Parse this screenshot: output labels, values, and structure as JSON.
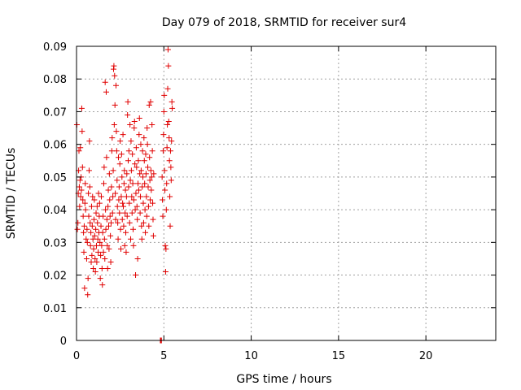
{
  "chart_data": {
    "type": "scatter",
    "title": "Day 079 of 2018, SRMTID for receiver sur4",
    "xlabel": "GPS time / hours",
    "ylabel": "SRMTID / TECUs",
    "xlim": [
      0,
      24
    ],
    "ylim": [
      0,
      0.09
    ],
    "xticks": [
      0,
      5,
      10,
      15,
      20
    ],
    "xtick_labels": [
      "0",
      "5",
      "10",
      "15",
      "20"
    ],
    "yticks": [
      0,
      0.01,
      0.02,
      0.03,
      0.04,
      0.05,
      0.06,
      0.07,
      0.08,
      0.09
    ],
    "ytick_labels": [
      "0",
      "0.01",
      "0.02",
      "0.03",
      "0.04",
      "0.05",
      "0.06",
      "0.07",
      "0.08",
      "0.09"
    ],
    "grid": true,
    "marker": "+",
    "color": "#e00000",
    "series": [
      {
        "name": "SRMTID",
        "points": [
          [
            0.02,
            0.066
          ],
          [
            0.05,
            0.034
          ],
          [
            0.08,
            0.036
          ],
          [
            0.1,
            0.045
          ],
          [
            0.12,
            0.052
          ],
          [
            0.14,
            0.058
          ],
          [
            0.16,
            0.047
          ],
          [
            0.18,
            0.041
          ],
          [
            0.2,
            0.049
          ],
          [
            0.22,
            0.059
          ],
          [
            0.24,
            0.044
          ],
          [
            0.26,
            0.05
          ],
          [
            0.28,
            0.046
          ],
          [
            0.3,
            0.071
          ],
          [
            0.32,
            0.064
          ],
          [
            0.34,
            0.053
          ],
          [
            0.36,
            0.043
          ],
          [
            0.38,
            0.038
          ],
          [
            0.4,
            0.033
          ],
          [
            0.42,
            0.027
          ],
          [
            0.44,
            0.035
          ],
          [
            0.46,
            0.016
          ],
          [
            0.48,
            0.042
          ],
          [
            0.5,
            0.048
          ],
          [
            0.52,
            0.04
          ],
          [
            0.55,
            0.031
          ],
          [
            0.58,
            0.025
          ],
          [
            0.6,
            0.034
          ],
          [
            0.62,
            0.03
          ],
          [
            0.64,
            0.014
          ],
          [
            0.66,
            0.019
          ],
          [
            0.68,
            0.045
          ],
          [
            0.7,
            0.038
          ],
          [
            0.72,
            0.052
          ],
          [
            0.74,
            0.061
          ],
          [
            0.76,
            0.047
          ],
          [
            0.78,
            0.036
          ],
          [
            0.8,
            0.029
          ],
          [
            0.82,
            0.033
          ],
          [
            0.84,
            0.024
          ],
          [
            0.86,
            0.041
          ],
          [
            0.88,
            0.026
          ],
          [
            0.9,
            0.035
          ],
          [
            0.92,
            0.044
          ],
          [
            0.94,
            0.031
          ],
          [
            0.96,
            0.022
          ],
          [
            0.98,
            0.028
          ],
          [
            1.0,
            0.037
          ],
          [
            1.02,
            0.043
          ],
          [
            1.04,
            0.032
          ],
          [
            1.06,
            0.025
          ],
          [
            1.08,
            0.021
          ],
          [
            1.1,
            0.034
          ],
          [
            1.12,
            0.039
          ],
          [
            1.14,
            0.029
          ],
          [
            1.16,
            0.024
          ],
          [
            1.18,
            0.041
          ],
          [
            1.2,
            0.036
          ],
          [
            1.22,
            0.031
          ],
          [
            1.24,
            0.027
          ],
          [
            1.26,
            0.045
          ],
          [
            1.28,
            0.033
          ],
          [
            1.3,
            0.038
          ],
          [
            1.32,
            0.042
          ],
          [
            1.34,
            0.03
          ],
          [
            1.36,
            0.019
          ],
          [
            1.38,
            0.026
          ],
          [
            1.4,
            0.035
          ],
          [
            1.42,
            0.044
          ],
          [
            1.44,
            0.029
          ],
          [
            1.46,
            0.022
          ],
          [
            1.48,
            0.017
          ],
          [
            1.5,
            0.033
          ],
          [
            1.52,
            0.038
          ],
          [
            1.54,
            0.027
          ],
          [
            1.56,
            0.048
          ],
          [
            1.58,
            0.053
          ],
          [
            1.6,
            0.031
          ],
          [
            1.62,
            0.025
          ],
          [
            1.64,
            0.079
          ],
          [
            1.66,
            0.04
          ],
          [
            1.68,
            0.034
          ],
          [
            1.7,
            0.076
          ],
          [
            1.72,
            0.056
          ],
          [
            1.74,
            0.037
          ],
          [
            1.76,
            0.029
          ],
          [
            1.78,
            0.022
          ],
          [
            1.8,
            0.041
          ],
          [
            1.82,
            0.046
          ],
          [
            1.84,
            0.035
          ],
          [
            1.86,
            0.028
          ],
          [
            1.88,
            0.051
          ],
          [
            1.9,
            0.043
          ],
          [
            1.92,
            0.038
          ],
          [
            1.94,
            0.032
          ],
          [
            1.96,
            0.024
          ],
          [
            1.98,
            0.036
          ],
          [
            2.0,
            0.047
          ],
          [
            2.02,
            0.058
          ],
          [
            2.04,
            0.062
          ],
          [
            2.06,
            0.039
          ],
          [
            2.08,
            0.044
          ],
          [
            2.1,
            0.052
          ],
          [
            2.12,
            0.083
          ],
          [
            2.14,
            0.084
          ],
          [
            2.16,
            0.066
          ],
          [
            2.18,
            0.081
          ],
          [
            2.2,
            0.072
          ],
          [
            2.22,
            0.045
          ],
          [
            2.24,
            0.037
          ],
          [
            2.26,
            0.078
          ],
          [
            2.28,
            0.064
          ],
          [
            2.3,
            0.058
          ],
          [
            2.32,
            0.049
          ],
          [
            2.34,
            0.041
          ],
          [
            2.36,
            0.036
          ],
          [
            2.38,
            0.031
          ],
          [
            2.4,
            0.056
          ],
          [
            2.42,
            0.043
          ],
          [
            2.44,
            0.047
          ],
          [
            2.46,
            0.039
          ],
          [
            2.48,
            0.054
          ],
          [
            2.5,
            0.061
          ],
          [
            2.52,
            0.034
          ],
          [
            2.54,
            0.028
          ],
          [
            2.56,
            0.044
          ],
          [
            2.58,
            0.057
          ],
          [
            2.6,
            0.05
          ],
          [
            2.62,
            0.037
          ],
          [
            2.64,
            0.042
          ],
          [
            2.66,
            0.063
          ],
          [
            2.68,
            0.041
          ],
          [
            2.7,
            0.035
          ],
          [
            2.72,
            0.048
          ],
          [
            2.74,
            0.052
          ],
          [
            2.76,
            0.029
          ],
          [
            2.78,
            0.039
          ],
          [
            2.8,
            0.046
          ],
          [
            2.82,
            0.033
          ],
          [
            2.84,
            0.027
          ],
          [
            2.86,
            0.044
          ],
          [
            2.88,
            0.051
          ],
          [
            2.9,
            0.038
          ],
          [
            2.92,
            0.069
          ],
          [
            2.94,
            0.073
          ],
          [
            2.96,
            0.055
          ],
          [
            2.98,
            0.047
          ],
          [
            3.0,
            0.058
          ],
          [
            3.02,
            0.042
          ],
          [
            3.04,
            0.036
          ],
          [
            3.06,
            0.066
          ],
          [
            3.08,
            0.049
          ],
          [
            3.1,
            0.031
          ],
          [
            3.12,
            0.061
          ],
          [
            3.14,
            0.052
          ],
          [
            3.16,
            0.044
          ],
          [
            3.18,
            0.039
          ],
          [
            3.2,
            0.057
          ],
          [
            3.22,
            0.048
          ],
          [
            3.24,
            0.034
          ],
          [
            3.26,
            0.029
          ],
          [
            3.28,
            0.043
          ],
          [
            3.3,
            0.065
          ],
          [
            3.32,
            0.067
          ],
          [
            3.34,
            0.054
          ],
          [
            3.36,
            0.04
          ],
          [
            3.38,
            0.02
          ],
          [
            3.4,
            0.045
          ],
          [
            3.42,
            0.059
          ],
          [
            3.44,
            0.053
          ],
          [
            3.46,
            0.041
          ],
          [
            3.48,
            0.037
          ],
          [
            3.5,
            0.025
          ],
          [
            3.52,
            0.048
          ],
          [
            3.54,
            0.055
          ],
          [
            3.56,
            0.046
          ],
          [
            3.58,
            0.063
          ],
          [
            3.6,
            0.068
          ],
          [
            3.62,
            0.051
          ],
          [
            3.64,
            0.039
          ],
          [
            3.66,
            0.044
          ],
          [
            3.68,
            0.06
          ],
          [
            3.7,
            0.052
          ],
          [
            3.72,
            0.035
          ],
          [
            3.74,
            0.031
          ],
          [
            3.76,
            0.047
          ],
          [
            3.78,
            0.058
          ],
          [
            3.8,
            0.05
          ],
          [
            3.82,
            0.042
          ],
          [
            3.84,
            0.036
          ],
          [
            3.86,
            0.062
          ],
          [
            3.88,
            0.055
          ],
          [
            3.9,
            0.048
          ],
          [
            3.92,
            0.04
          ],
          [
            3.94,
            0.033
          ],
          [
            3.96,
            0.057
          ],
          [
            3.98,
            0.051
          ],
          [
            4.0,
            0.044
          ],
          [
            4.02,
            0.038
          ],
          [
            4.04,
            0.065
          ],
          [
            4.06,
            0.06
          ],
          [
            4.08,
            0.053
          ],
          [
            4.1,
            0.047
          ],
          [
            4.12,
            0.041
          ],
          [
            4.14,
            0.035
          ],
          [
            4.16,
            0.072
          ],
          [
            4.18,
            0.056
          ],
          [
            4.2,
            0.049
          ],
          [
            4.22,
            0.043
          ],
          [
            4.24,
            0.073
          ],
          [
            4.26,
            0.052
          ],
          [
            4.28,
            0.046
          ],
          [
            4.3,
            0.05
          ],
          [
            4.32,
            0.066
          ],
          [
            4.34,
            0.058
          ],
          [
            4.36,
            0.042
          ],
          [
            4.38,
            0.037
          ],
          [
            4.4,
            0.032
          ],
          [
            4.42,
            0.051
          ],
          [
            4.8,
            0.0
          ],
          [
            4.82,
            0.0
          ],
          [
            4.84,
            0.0
          ],
          [
            4.86,
            0.0
          ],
          [
            4.9,
            0.05
          ],
          [
            4.92,
            0.043
          ],
          [
            4.94,
            0.038
          ],
          [
            4.96,
            0.058
          ],
          [
            4.98,
            0.063
          ],
          [
            5.0,
            0.07
          ],
          [
            5.02,
            0.075
          ],
          [
            5.04,
            0.052
          ],
          [
            5.06,
            0.046
          ],
          [
            5.08,
            0.029
          ],
          [
            5.1,
            0.021
          ],
          [
            5.12,
            0.028
          ],
          [
            5.14,
            0.04
          ],
          [
            5.16,
            0.048
          ],
          [
            5.18,
            0.059
          ],
          [
            5.2,
            0.066
          ],
          [
            5.22,
            0.077
          ],
          [
            5.24,
            0.089
          ],
          [
            5.26,
            0.084
          ],
          [
            5.28,
            0.067
          ],
          [
            5.3,
            0.062
          ],
          [
            5.32,
            0.055
          ],
          [
            5.34,
            0.044
          ],
          [
            5.36,
            0.035
          ],
          [
            5.38,
            0.058
          ],
          [
            5.4,
            0.053
          ],
          [
            5.42,
            0.049
          ],
          [
            5.44,
            0.061
          ],
          [
            5.46,
            0.073
          ],
          [
            5.48,
            0.071
          ]
        ]
      }
    ]
  }
}
